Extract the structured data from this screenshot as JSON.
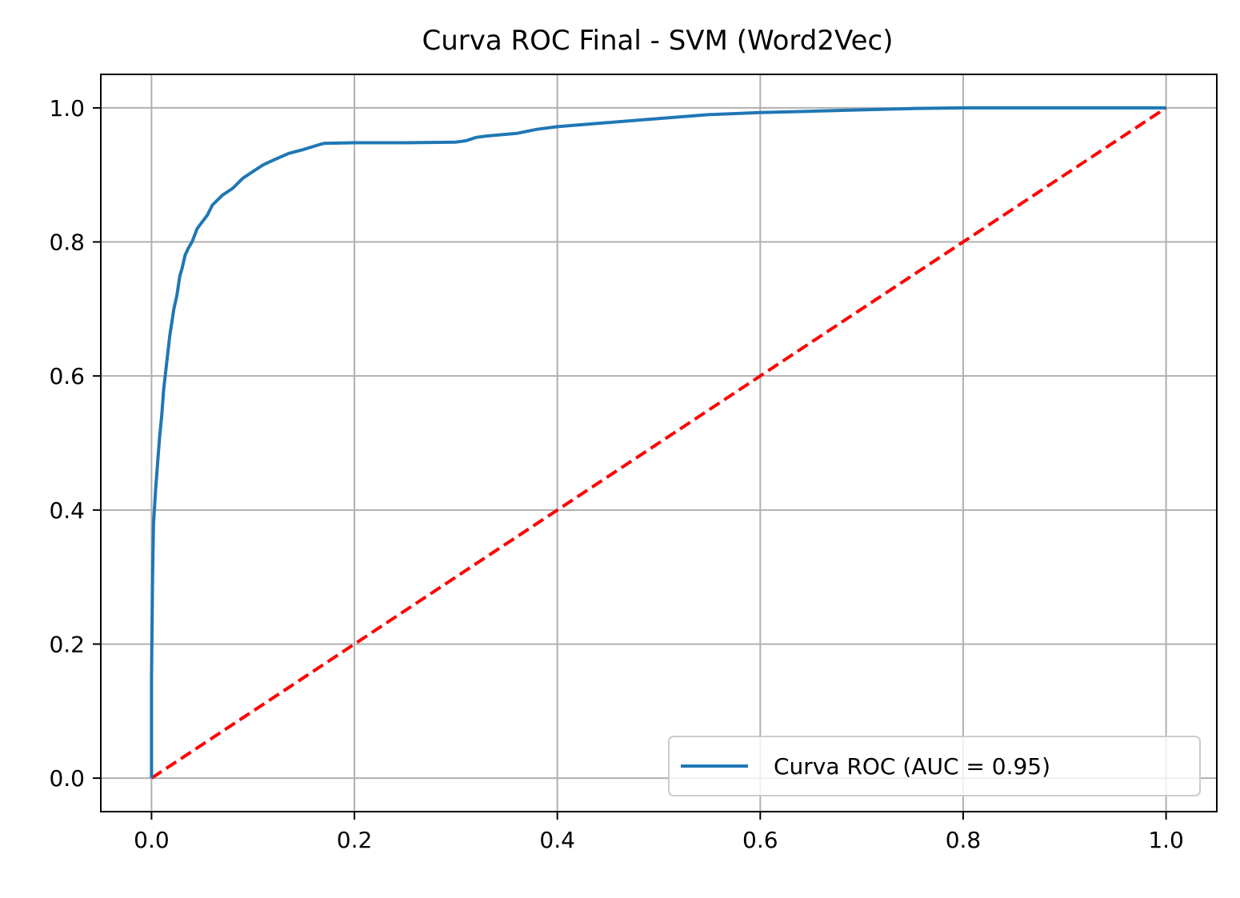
{
  "chart_data": {
    "type": "line",
    "title": "Curva ROC Final - SVM (Word2Vec)",
    "xlabel": "",
    "ylabel": "",
    "xlim": [
      -0.05,
      1.05
    ],
    "ylim": [
      -0.05,
      1.05
    ],
    "x_ticks": [
      0.0,
      0.2,
      0.4,
      0.6,
      0.8,
      1.0
    ],
    "y_ticks": [
      0.0,
      0.2,
      0.4,
      0.6,
      0.8,
      1.0
    ],
    "x_tick_labels": [
      "0.0",
      "0.2",
      "0.4",
      "0.6",
      "0.8",
      "1.0"
    ],
    "y_tick_labels": [
      "0.0",
      "0.2",
      "0.4",
      "0.6",
      "0.8",
      "1.0"
    ],
    "grid": true,
    "legend_position": "bottom-right",
    "series": [
      {
        "name": "Curva ROC (AUC = 0.95)",
        "color": "#1f77b4",
        "style": "solid",
        "x": [
          0.0,
          0.0,
          0.001,
          0.002,
          0.004,
          0.006,
          0.008,
          0.01,
          0.012,
          0.015,
          0.018,
          0.02,
          0.022,
          0.025,
          0.028,
          0.03,
          0.033,
          0.036,
          0.04,
          0.045,
          0.05,
          0.055,
          0.06,
          0.07,
          0.08,
          0.09,
          0.1,
          0.11,
          0.12,
          0.135,
          0.15,
          0.165,
          0.17,
          0.2,
          0.25,
          0.3,
          0.31,
          0.32,
          0.33,
          0.36,
          0.38,
          0.4,
          0.45,
          0.5,
          0.55,
          0.6,
          0.65,
          0.7,
          0.75,
          0.8,
          0.9,
          1.0
        ],
        "y": [
          0.0,
          0.15,
          0.3,
          0.38,
          0.43,
          0.47,
          0.51,
          0.54,
          0.58,
          0.62,
          0.66,
          0.68,
          0.7,
          0.72,
          0.75,
          0.76,
          0.78,
          0.79,
          0.8,
          0.82,
          0.83,
          0.84,
          0.855,
          0.87,
          0.88,
          0.895,
          0.905,
          0.915,
          0.922,
          0.932,
          0.938,
          0.945,
          0.947,
          0.948,
          0.948,
          0.949,
          0.951,
          0.956,
          0.958,
          0.962,
          0.968,
          0.972,
          0.978,
          0.984,
          0.99,
          0.993,
          0.995,
          0.997,
          0.999,
          1.0,
          1.0,
          1.0
        ]
      },
      {
        "name": "",
        "color": "#ff0000",
        "style": "dashed",
        "x": [
          0.0,
          1.0
        ],
        "y": [
          0.0,
          1.0
        ]
      }
    ]
  }
}
